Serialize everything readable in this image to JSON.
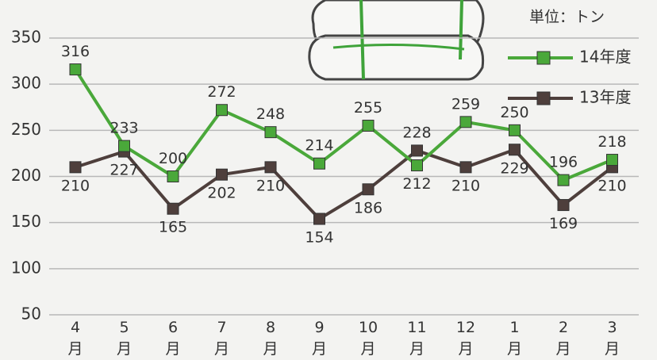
{
  "chart_data": {
    "type": "line",
    "unit": "単位：トン",
    "categories": [
      "4月",
      "5月",
      "6月",
      "7月",
      "8月",
      "9月",
      "10月",
      "11月",
      "12月",
      "1月",
      "2月",
      "3月"
    ],
    "series": [
      {
        "name": "14年度",
        "color": "#4aa83a",
        "values": [
          316,
          233,
          200,
          272,
          248,
          214,
          255,
          212,
          259,
          250,
          196,
          218
        ]
      },
      {
        "name": "13年度",
        "color": "#4e3f3c",
        "values": [
          210,
          227,
          165,
          202,
          210,
          154,
          186,
          228,
          210,
          229,
          169,
          210
        ]
      }
    ],
    "ylim": [
      50,
      350
    ],
    "yticks": [
      50,
      100,
      150,
      200,
      250,
      300,
      350
    ],
    "grid": true,
    "legend": "top-right"
  }
}
